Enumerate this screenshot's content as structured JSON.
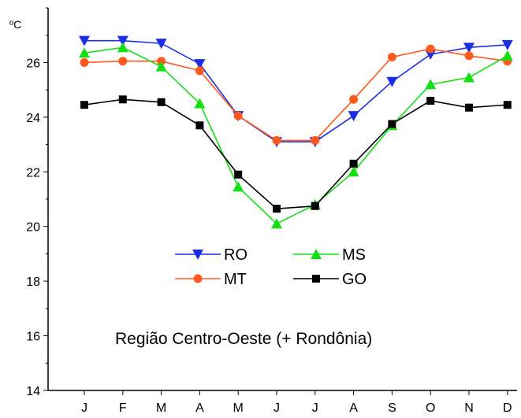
{
  "chart_data": {
    "type": "line",
    "categories": [
      "J",
      "F",
      "M",
      "A",
      "M",
      "J",
      "J",
      "A",
      "S",
      "O",
      "N",
      "D"
    ],
    "y_unit": "ºC",
    "ylim": [
      14,
      28
    ],
    "yticks": [
      14,
      16,
      18,
      20,
      22,
      24,
      26
    ],
    "grid": false,
    "legend_position": "center",
    "annotation": "Região Centro-Oeste (+ Rondônia)",
    "series": [
      {
        "name": "RO",
        "color": "#1a2ee6",
        "marker": "triangle-down",
        "values": [
          26.8,
          26.8,
          26.7,
          25.95,
          24.05,
          23.1,
          23.1,
          24.05,
          25.3,
          26.3,
          26.55,
          26.65
        ]
      },
      {
        "name": "MT",
        "color": "#ff5a1e",
        "marker": "circle",
        "values": [
          26.0,
          26.05,
          26.05,
          25.7,
          24.05,
          23.15,
          23.15,
          24.65,
          26.2,
          26.5,
          26.25,
          26.05
        ]
      },
      {
        "name": "MS",
        "color": "#12e012",
        "marker": "triangle-up",
        "values": [
          26.35,
          26.55,
          25.85,
          24.5,
          21.45,
          20.1,
          20.8,
          22.0,
          23.7,
          25.2,
          25.45,
          26.25
        ]
      },
      {
        "name": "GO",
        "color": "#000000",
        "marker": "square",
        "values": [
          24.45,
          24.65,
          24.55,
          23.7,
          21.9,
          20.65,
          20.75,
          22.3,
          23.75,
          24.6,
          24.35,
          24.45
        ]
      }
    ],
    "legend_layout": [
      [
        "RO",
        "MS"
      ],
      [
        "MT",
        "GO"
      ]
    ]
  }
}
